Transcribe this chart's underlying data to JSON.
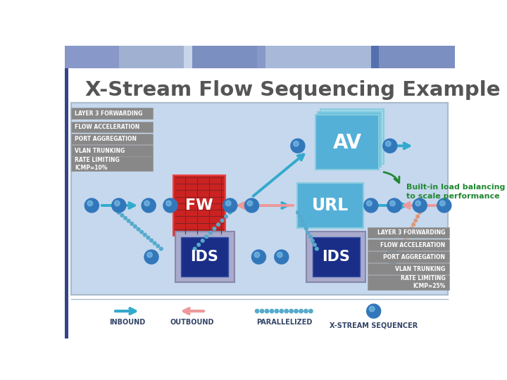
{
  "title": "X-Stream Flow Sequencing Example",
  "title_color": "#555555",
  "bg_color": "#ffffff",
  "header_colors": [
    "#8898c8",
    "#a0b0d0",
    "#c8d4e8",
    "#7b8fc0",
    "#8898c8",
    "#a8b8d8",
    "#5570b0",
    "#7b8fc0"
  ],
  "header_widths": [
    100,
    120,
    15,
    120,
    15,
    195,
    15,
    140
  ],
  "left_labels": [
    "LAYER 3 FORWARDING",
    "FLOW ACCELERATION",
    "PORT AGGREGATION",
    "VLAN TRUNKING",
    "RATE LIMITING\nICMP=10%"
  ],
  "right_labels": [
    "LAYER 3 FORWARDING",
    "FLOW ACCELERATION",
    "PORT AGGREGATION",
    "VLAN TRUNKING",
    "RATE LIMITING\nICMP=25%"
  ],
  "label_bg": "#888888",
  "label_text_color": "#ffffff",
  "node_color": "#3377bb",
  "arrow_inbound": "#33aacc",
  "arrow_outbound": "#ee9999",
  "dot_color": "#55aacc",
  "dot_color2": "#dd9977",
  "balancing_text": "Built-in load balancing\nto scale performance",
  "balancing_color": "#228833",
  "legend_inbound": "INBOUND",
  "legend_outbound": "OUTBOUND",
  "legend_parallel": "PARALLELIZED",
  "legend_sequencer": "X-STREAM SEQUENCER",
  "footer_text_color": "#334466",
  "main_bg": "#c5d8ee",
  "main_border": "#aabbcc"
}
